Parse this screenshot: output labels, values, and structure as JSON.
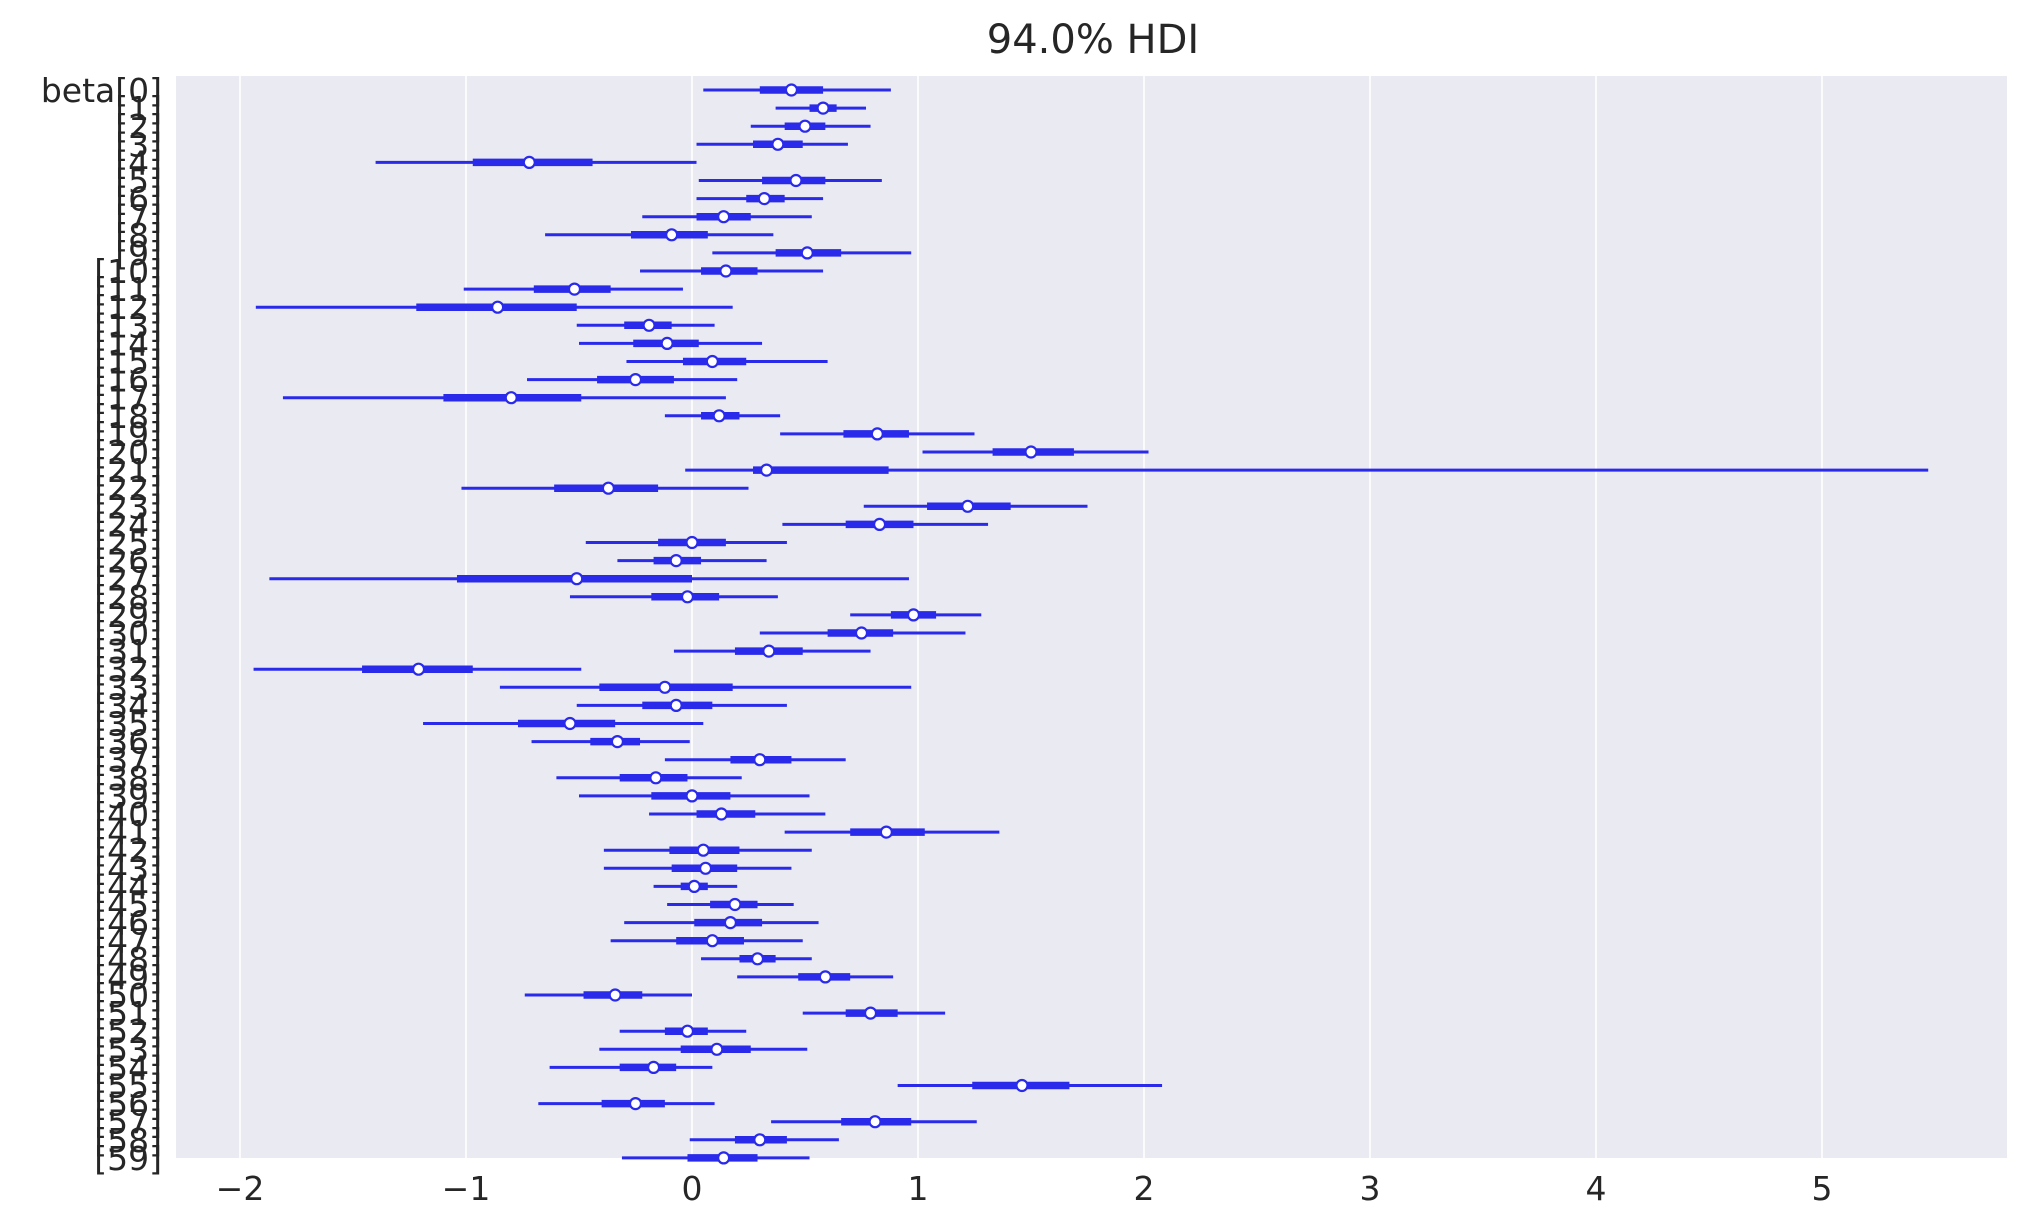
{
  "chart_data": {
    "type": "forest",
    "title": "94.0% HDI",
    "xticks": [
      "−2",
      "−1",
      "0",
      "1",
      "2",
      "3",
      "4",
      "5"
    ],
    "xtick_values": [
      -2,
      -1,
      0,
      1,
      2,
      3,
      4,
      5
    ],
    "xlim": [
      -2.3,
      5.8
    ],
    "grid": true,
    "background": "#EAEAF2",
    "series_color": "#2A2AEB",
    "row_labels": [
      "beta[0]",
      "[1]",
      "[2]",
      "[3]",
      "[4]",
      "[5]",
      "[6]",
      "[7]",
      "[8]",
      "[9]",
      "[10]",
      "[11]",
      "[12]",
      "[13]",
      "[14]",
      "[15]",
      "[16]",
      "[17]",
      "[18]",
      "[19]",
      "[20]",
      "[21]",
      "[22]",
      "[23]",
      "[24]",
      "[25]",
      "[26]",
      "[27]",
      "[28]",
      "[29]",
      "[30]",
      "[31]",
      "[32]",
      "[33]",
      "[34]",
      "[35]",
      "[36]",
      "[37]",
      "[38]",
      "[39]",
      "[40]",
      "[41]",
      "[42]",
      "[43]",
      "[44]",
      "[45]",
      "[46]",
      "[47]",
      "[48]",
      "[49]",
      "[50]",
      "[51]",
      "[52]",
      "[53]",
      "[54]",
      "[55]",
      "[56]",
      "[57]",
      "[58]",
      "[59]"
    ],
    "rows": [
      {
        "mean": 0.44,
        "hdi_low": 0.05,
        "hdi_high": 0.88,
        "iqr_low": 0.3,
        "iqr_high": 0.58
      },
      {
        "mean": 0.58,
        "hdi_low": 0.37,
        "hdi_high": 0.77,
        "iqr_low": 0.52,
        "iqr_high": 0.64
      },
      {
        "mean": 0.5,
        "hdi_low": 0.26,
        "hdi_high": 0.79,
        "iqr_low": 0.41,
        "iqr_high": 0.59
      },
      {
        "mean": 0.38,
        "hdi_low": 0.02,
        "hdi_high": 0.69,
        "iqr_low": 0.27,
        "iqr_high": 0.49
      },
      {
        "mean": -0.72,
        "hdi_low": -1.4,
        "hdi_high": 0.02,
        "iqr_low": -0.97,
        "iqr_high": -0.44
      },
      {
        "mean": 0.46,
        "hdi_low": 0.03,
        "hdi_high": 0.84,
        "iqr_low": 0.31,
        "iqr_high": 0.59
      },
      {
        "mean": 0.32,
        "hdi_low": 0.02,
        "hdi_high": 0.58,
        "iqr_low": 0.24,
        "iqr_high": 0.41
      },
      {
        "mean": 0.14,
        "hdi_low": -0.22,
        "hdi_high": 0.53,
        "iqr_low": 0.02,
        "iqr_high": 0.26
      },
      {
        "mean": -0.09,
        "hdi_low": -0.65,
        "hdi_high": 0.36,
        "iqr_low": -0.27,
        "iqr_high": 0.07
      },
      {
        "mean": 0.51,
        "hdi_low": 0.09,
        "hdi_high": 0.97,
        "iqr_low": 0.37,
        "iqr_high": 0.66
      },
      {
        "mean": 0.15,
        "hdi_low": -0.23,
        "hdi_high": 0.58,
        "iqr_low": 0.04,
        "iqr_high": 0.29
      },
      {
        "mean": -0.52,
        "hdi_low": -1.01,
        "hdi_high": -0.04,
        "iqr_low": -0.7,
        "iqr_high": -0.36
      },
      {
        "mean": -0.86,
        "hdi_low": -1.93,
        "hdi_high": 0.18,
        "iqr_low": -1.22,
        "iqr_high": -0.51
      },
      {
        "mean": -0.19,
        "hdi_low": -0.51,
        "hdi_high": 0.1,
        "iqr_low": -0.3,
        "iqr_high": -0.09
      },
      {
        "mean": -0.11,
        "hdi_low": -0.5,
        "hdi_high": 0.31,
        "iqr_low": -0.26,
        "iqr_high": 0.03
      },
      {
        "mean": 0.09,
        "hdi_low": -0.29,
        "hdi_high": 0.6,
        "iqr_low": -0.04,
        "iqr_high": 0.24
      },
      {
        "mean": -0.25,
        "hdi_low": -0.73,
        "hdi_high": 0.2,
        "iqr_low": -0.42,
        "iqr_high": -0.08
      },
      {
        "mean": -0.8,
        "hdi_low": -1.81,
        "hdi_high": 0.15,
        "iqr_low": -1.1,
        "iqr_high": -0.49
      },
      {
        "mean": 0.12,
        "hdi_low": -0.12,
        "hdi_high": 0.39,
        "iqr_low": 0.04,
        "iqr_high": 0.21
      },
      {
        "mean": 0.82,
        "hdi_low": 0.39,
        "hdi_high": 1.25,
        "iqr_low": 0.67,
        "iqr_high": 0.96
      },
      {
        "mean": 1.5,
        "hdi_low": 1.02,
        "hdi_high": 2.02,
        "iqr_low": 1.33,
        "iqr_high": 1.69
      },
      {
        "mean": 0.33,
        "hdi_low": -0.03,
        "hdi_high": 5.47,
        "iqr_low": 0.27,
        "iqr_high": 0.87
      },
      {
        "mean": -0.37,
        "hdi_low": -1.02,
        "hdi_high": 0.25,
        "iqr_low": -0.61,
        "iqr_high": -0.15
      },
      {
        "mean": 1.22,
        "hdi_low": 0.76,
        "hdi_high": 1.75,
        "iqr_low": 1.04,
        "iqr_high": 1.41
      },
      {
        "mean": 0.83,
        "hdi_low": 0.4,
        "hdi_high": 1.31,
        "iqr_low": 0.68,
        "iqr_high": 0.98
      },
      {
        "mean": 0.0,
        "hdi_low": -0.47,
        "hdi_high": 0.42,
        "iqr_low": -0.15,
        "iqr_high": 0.15
      },
      {
        "mean": -0.07,
        "hdi_low": -0.33,
        "hdi_high": 0.33,
        "iqr_low": -0.17,
        "iqr_high": 0.04
      },
      {
        "mean": -0.51,
        "hdi_low": -1.87,
        "hdi_high": 0.96,
        "iqr_low": -1.04,
        "iqr_high": 0.0
      },
      {
        "mean": -0.02,
        "hdi_low": -0.54,
        "hdi_high": 0.38,
        "iqr_low": -0.18,
        "iqr_high": 0.12
      },
      {
        "mean": 0.98,
        "hdi_low": 0.7,
        "hdi_high": 1.28,
        "iqr_low": 0.88,
        "iqr_high": 1.08
      },
      {
        "mean": 0.75,
        "hdi_low": 0.3,
        "hdi_high": 1.21,
        "iqr_low": 0.6,
        "iqr_high": 0.89
      },
      {
        "mean": 0.34,
        "hdi_low": -0.08,
        "hdi_high": 0.79,
        "iqr_low": 0.19,
        "iqr_high": 0.49
      },
      {
        "mean": -1.21,
        "hdi_low": -1.94,
        "hdi_high": -0.49,
        "iqr_low": -1.46,
        "iqr_high": -0.97
      },
      {
        "mean": -0.12,
        "hdi_low": -0.85,
        "hdi_high": 0.97,
        "iqr_low": -0.41,
        "iqr_high": 0.18
      },
      {
        "mean": -0.07,
        "hdi_low": -0.51,
        "hdi_high": 0.42,
        "iqr_low": -0.22,
        "iqr_high": 0.09
      },
      {
        "mean": -0.54,
        "hdi_low": -1.19,
        "hdi_high": 0.05,
        "iqr_low": -0.77,
        "iqr_high": -0.34
      },
      {
        "mean": -0.33,
        "hdi_low": -0.71,
        "hdi_high": -0.01,
        "iqr_low": -0.45,
        "iqr_high": -0.23
      },
      {
        "mean": 0.3,
        "hdi_low": -0.12,
        "hdi_high": 0.68,
        "iqr_low": 0.17,
        "iqr_high": 0.44
      },
      {
        "mean": -0.16,
        "hdi_low": -0.6,
        "hdi_high": 0.22,
        "iqr_low": -0.32,
        "iqr_high": -0.02
      },
      {
        "mean": 0.0,
        "hdi_low": -0.5,
        "hdi_high": 0.52,
        "iqr_low": -0.18,
        "iqr_high": 0.17
      },
      {
        "mean": 0.13,
        "hdi_low": -0.19,
        "hdi_high": 0.59,
        "iqr_low": 0.02,
        "iqr_high": 0.28
      },
      {
        "mean": 0.86,
        "hdi_low": 0.41,
        "hdi_high": 1.36,
        "iqr_low": 0.7,
        "iqr_high": 1.03
      },
      {
        "mean": 0.05,
        "hdi_low": -0.39,
        "hdi_high": 0.53,
        "iqr_low": -0.1,
        "iqr_high": 0.21
      },
      {
        "mean": 0.06,
        "hdi_low": -0.39,
        "hdi_high": 0.44,
        "iqr_low": -0.09,
        "iqr_high": 0.2
      },
      {
        "mean": 0.01,
        "hdi_low": -0.17,
        "hdi_high": 0.2,
        "iqr_low": -0.05,
        "iqr_high": 0.07
      },
      {
        "mean": 0.19,
        "hdi_low": -0.11,
        "hdi_high": 0.45,
        "iqr_low": 0.08,
        "iqr_high": 0.29
      },
      {
        "mean": 0.17,
        "hdi_low": -0.3,
        "hdi_high": 0.56,
        "iqr_low": 0.01,
        "iqr_high": 0.31
      },
      {
        "mean": 0.09,
        "hdi_low": -0.36,
        "hdi_high": 0.49,
        "iqr_low": -0.07,
        "iqr_high": 0.23
      },
      {
        "mean": 0.29,
        "hdi_low": 0.04,
        "hdi_high": 0.53,
        "iqr_low": 0.21,
        "iqr_high": 0.37
      },
      {
        "mean": 0.59,
        "hdi_low": 0.2,
        "hdi_high": 0.89,
        "iqr_low": 0.47,
        "iqr_high": 0.7
      },
      {
        "mean": -0.34,
        "hdi_low": -0.74,
        "hdi_high": 0.0,
        "iqr_low": -0.48,
        "iqr_high": -0.22
      },
      {
        "mean": 0.79,
        "hdi_low": 0.49,
        "hdi_high": 1.12,
        "iqr_low": 0.68,
        "iqr_high": 0.91
      },
      {
        "mean": -0.02,
        "hdi_low": -0.32,
        "hdi_high": 0.24,
        "iqr_low": -0.12,
        "iqr_high": 0.07
      },
      {
        "mean": 0.11,
        "hdi_low": -0.41,
        "hdi_high": 0.51,
        "iqr_low": -0.05,
        "iqr_high": 0.26
      },
      {
        "mean": -0.17,
        "hdi_low": -0.63,
        "hdi_high": 0.09,
        "iqr_low": -0.32,
        "iqr_high": -0.07
      },
      {
        "mean": 1.46,
        "hdi_low": 0.91,
        "hdi_high": 2.08,
        "iqr_low": 1.24,
        "iqr_high": 1.67
      },
      {
        "mean": -0.25,
        "hdi_low": -0.68,
        "hdi_high": 0.1,
        "iqr_low": -0.4,
        "iqr_high": -0.12
      },
      {
        "mean": 0.81,
        "hdi_low": 0.35,
        "hdi_high": 1.26,
        "iqr_low": 0.66,
        "iqr_high": 0.97
      },
      {
        "mean": 0.3,
        "hdi_low": -0.01,
        "hdi_high": 0.65,
        "iqr_low": 0.19,
        "iqr_high": 0.42
      },
      {
        "mean": 0.14,
        "hdi_low": -0.31,
        "hdi_high": 0.52,
        "iqr_low": -0.02,
        "iqr_high": 0.29
      }
    ]
  }
}
